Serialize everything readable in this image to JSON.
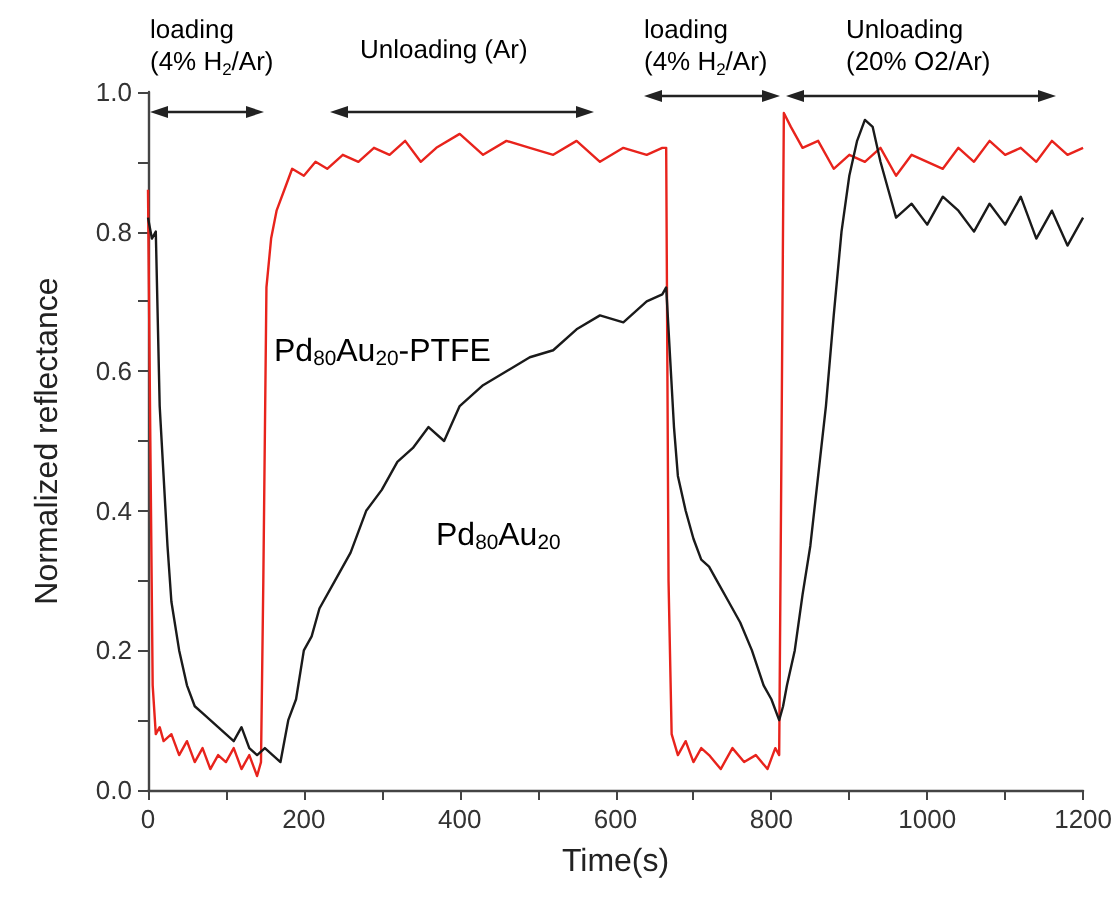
{
  "chart_data": {
    "type": "line",
    "xlabel": "Time(s)",
    "ylabel": "Normalized reflectance",
    "xlim": [
      0,
      1200
    ],
    "ylim": [
      0,
      1.0
    ],
    "xticks": [
      0,
      {
        "value": 100,
        "label": null
      },
      200,
      {
        "value": 300,
        "label": null
      },
      400,
      {
        "value": 500,
        "label": null
      },
      600,
      {
        "value": 700,
        "label": null
      },
      800,
      {
        "value": 900,
        "label": null
      },
      1000,
      {
        "value": 1100,
        "label": null
      },
      1200
    ],
    "yticks": [
      {
        "value": 0,
        "label": "0.0"
      },
      {
        "value": 0.1,
        "label": null
      },
      0.2,
      {
        "value": 0.3,
        "label": null
      },
      0.4,
      {
        "value": 0.5,
        "label": null
      },
      0.6,
      {
        "value": 0.7,
        "label": null
      },
      0.8,
      {
        "value": 0.9,
        "label": null
      },
      {
        "value": 1,
        "label": "1.0"
      }
    ],
    "grid": false,
    "marker": "none",
    "line_style": "solid",
    "annotations": [
      "loading\n(4% H$_{2}$/Ar)",
      "Unloading (Ar)",
      "loading\n(4% H$_{2}$/Ar)",
      "Unloading\n(20% O2/Ar)"
    ],
    "series": [
      {
        "name": "Pd$_{80}$Au$_{20}$-PTFE",
        "color": "#e8231c",
        "x": [
          0,
          3,
          6,
          10,
          15,
          20,
          30,
          40,
          50,
          60,
          70,
          80,
          90,
          100,
          110,
          120,
          130,
          140,
          145,
          148,
          152,
          158,
          165,
          175,
          185,
          200,
          215,
          230,
          250,
          270,
          290,
          310,
          330,
          350,
          370,
          400,
          430,
          460,
          490,
          520,
          550,
          580,
          610,
          640,
          660,
          665,
          668,
          672,
          680,
          690,
          700,
          710,
          720,
          735,
          750,
          765,
          780,
          795,
          805,
          810,
          813,
          816,
          825,
          840,
          860,
          880,
          900,
          920,
          940,
          960,
          980,
          1000,
          1020,
          1040,
          1060,
          1080,
          1100,
          1120,
          1140,
          1160,
          1180,
          1200
        ],
        "values": [
          0.86,
          0.5,
          0.15,
          0.08,
          0.09,
          0.07,
          0.08,
          0.05,
          0.07,
          0.04,
          0.06,
          0.03,
          0.05,
          0.04,
          0.06,
          0.03,
          0.05,
          0.02,
          0.04,
          0.3,
          0.72,
          0.79,
          0.83,
          0.86,
          0.89,
          0.88,
          0.9,
          0.89,
          0.91,
          0.9,
          0.92,
          0.91,
          0.93,
          0.9,
          0.92,
          0.94,
          0.91,
          0.93,
          0.92,
          0.91,
          0.93,
          0.9,
          0.92,
          0.91,
          0.92,
          0.92,
          0.3,
          0.08,
          0.05,
          0.07,
          0.04,
          0.06,
          0.05,
          0.03,
          0.06,
          0.04,
          0.05,
          0.03,
          0.06,
          0.05,
          0.5,
          0.97,
          0.95,
          0.92,
          0.93,
          0.89,
          0.91,
          0.9,
          0.92,
          0.88,
          0.91,
          0.9,
          0.89,
          0.92,
          0.9,
          0.93,
          0.91,
          0.92,
          0.9,
          0.93,
          0.91,
          0.92
        ]
      },
      {
        "name": "Pd$_{80}$Au$_{20}$",
        "color": "#1a1a1a",
        "x": [
          0,
          5,
          10,
          15,
          20,
          25,
          30,
          40,
          50,
          60,
          70,
          80,
          90,
          100,
          110,
          120,
          130,
          140,
          150,
          160,
          170,
          180,
          190,
          200,
          210,
          220,
          240,
          260,
          280,
          300,
          320,
          340,
          360,
          380,
          400,
          430,
          460,
          490,
          520,
          550,
          580,
          610,
          640,
          660,
          665,
          670,
          675,
          680,
          690,
          700,
          710,
          720,
          730,
          745,
          760,
          775,
          790,
          800,
          810,
          815,
          820,
          830,
          840,
          850,
          860,
          870,
          880,
          890,
          900,
          910,
          920,
          930,
          940,
          950,
          960,
          980,
          1000,
          1020,
          1040,
          1060,
          1080,
          1100,
          1120,
          1140,
          1160,
          1180,
          1200
        ],
        "values": [
          0.82,
          0.79,
          0.8,
          0.55,
          0.45,
          0.35,
          0.27,
          0.2,
          0.15,
          0.12,
          0.11,
          0.1,
          0.09,
          0.08,
          0.07,
          0.09,
          0.06,
          0.05,
          0.06,
          0.05,
          0.04,
          0.1,
          0.13,
          0.2,
          0.22,
          0.26,
          0.3,
          0.34,
          0.4,
          0.43,
          0.47,
          0.49,
          0.52,
          0.5,
          0.55,
          0.58,
          0.6,
          0.62,
          0.63,
          0.66,
          0.68,
          0.67,
          0.7,
          0.71,
          0.72,
          0.62,
          0.52,
          0.45,
          0.4,
          0.36,
          0.33,
          0.32,
          0.3,
          0.27,
          0.24,
          0.2,
          0.15,
          0.13,
          0.1,
          0.12,
          0.15,
          0.2,
          0.28,
          0.35,
          0.45,
          0.55,
          0.68,
          0.8,
          0.88,
          0.93,
          0.96,
          0.95,
          0.9,
          0.86,
          0.82,
          0.84,
          0.81,
          0.85,
          0.83,
          0.8,
          0.84,
          0.81,
          0.85,
          0.79,
          0.83,
          0.78,
          0.82
        ]
      }
    ]
  }
}
